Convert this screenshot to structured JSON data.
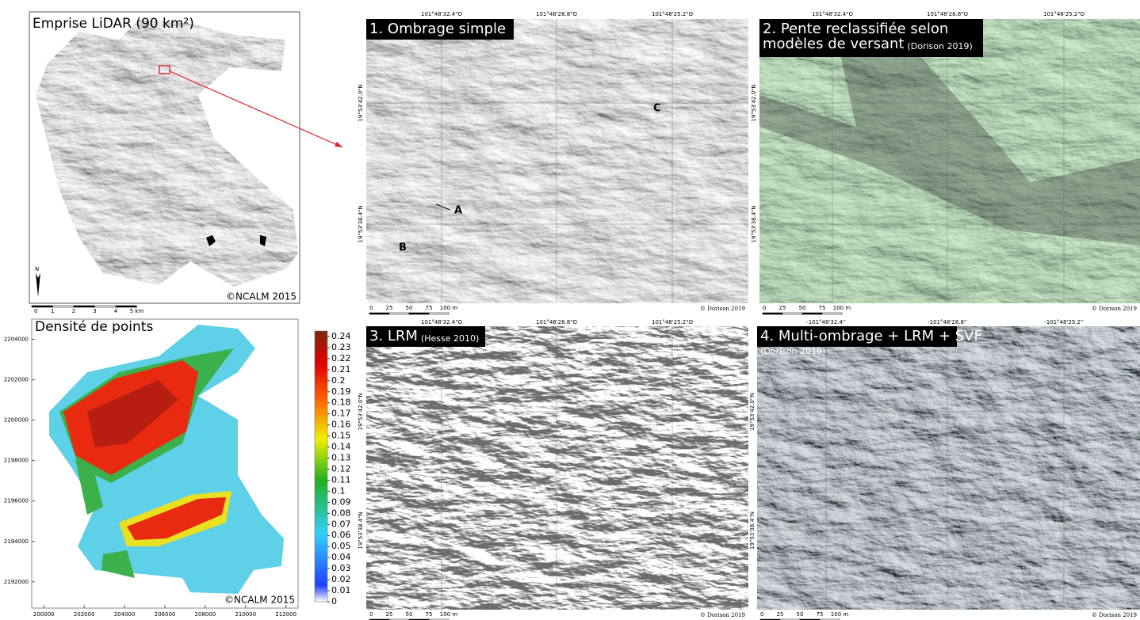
{
  "overview_map": {
    "title": "Emprise LiDAR (90 km²)",
    "credit": "©NCALM 2015",
    "north": "N",
    "scale_labels": [
      "0",
      "1",
      "2",
      "3",
      "4",
      "5 km"
    ]
  },
  "density_map": {
    "title": "Densité de points",
    "credit": "©NCALM 2015",
    "xlim": [
      199400,
      212600
    ],
    "xticks": [
      200000,
      202000,
      204000,
      206000,
      208000,
      210000,
      212000
    ],
    "ylim": [
      2190700,
      2205000
    ],
    "yticks": [
      2192000,
      2194000,
      2196000,
      2198000,
      2200000,
      2202000,
      2204000
    ],
    "colorbar": {
      "lim": [
        0,
        0.245
      ],
      "ticks": [
        0.24,
        0.23,
        0.22,
        0.21,
        0.2,
        0.19,
        0.18,
        0.17,
        0.16,
        0.15,
        0.14,
        0.13,
        0.12,
        0.11,
        0.1,
        0.09,
        0.08,
        0.07,
        0.06,
        0.05,
        0.04,
        0.03,
        0.02,
        0.01,
        0
      ]
    }
  },
  "panels": [
    {
      "title_lines": [
        "1. Ombrage simple"
      ],
      "lon_labels": [
        "101°48'32.4\"O",
        "101°48'28.8\"O",
        "101°48'25.2\"O"
      ],
      "lat_labels": [
        "19°53'42.0\"N",
        "19°53'38.4\"N"
      ],
      "annotations": [
        "A",
        "B",
        "C"
      ],
      "scale_labels": [
        "0",
        "25",
        "50",
        "75",
        "100 m"
      ],
      "credit": "© Dorison 2019"
    },
    {
      "title_lines": [
        "2. Pente reclassifiée selon",
        "modèles de versant"
      ],
      "subtitle": "(Dorison 2019)",
      "lon_labels": [
        "101°48'32.4\"O",
        "101°48'28.8\"O",
        "101°48'25.2\"O"
      ],
      "lat_labels": [
        "19°53'42.0\"N",
        "19°53'38.4\"N"
      ],
      "scale_labels": [
        "0",
        "25",
        "50",
        "75",
        "100 m"
      ],
      "credit": "© Dorison 2019"
    },
    {
      "title_lines": [
        "3. LRM"
      ],
      "subtitle": "(Hesse 2010)",
      "lon_labels": [
        "101°48'32.4\"O",
        "101°48'28.8\"O",
        "101°48'25.2\"O"
      ],
      "lat_labels": [
        "19°53'42.0\"N",
        "19°53'38.4\"N"
      ],
      "scale_labels": [
        "0",
        "25",
        "50",
        "75",
        "100 m"
      ],
      "credit": "© Dorison 2019"
    },
    {
      "title_lines": [
        "4. Multi-ombrage + LRM + SVF"
      ],
      "subtitle": "(Dorison 2019)",
      "lon_labels": [
        "-101°48'32.4''",
        "-101°48'28.8''",
        "-101°48'25.2''"
      ],
      "lat_labels": [
        "19°53'42.0''N",
        "19°53'38.4''N"
      ],
      "scale_labels": [
        "0",
        "25",
        "50",
        "75",
        "100 m"
      ],
      "credit": "© Dorison 2019"
    }
  ]
}
